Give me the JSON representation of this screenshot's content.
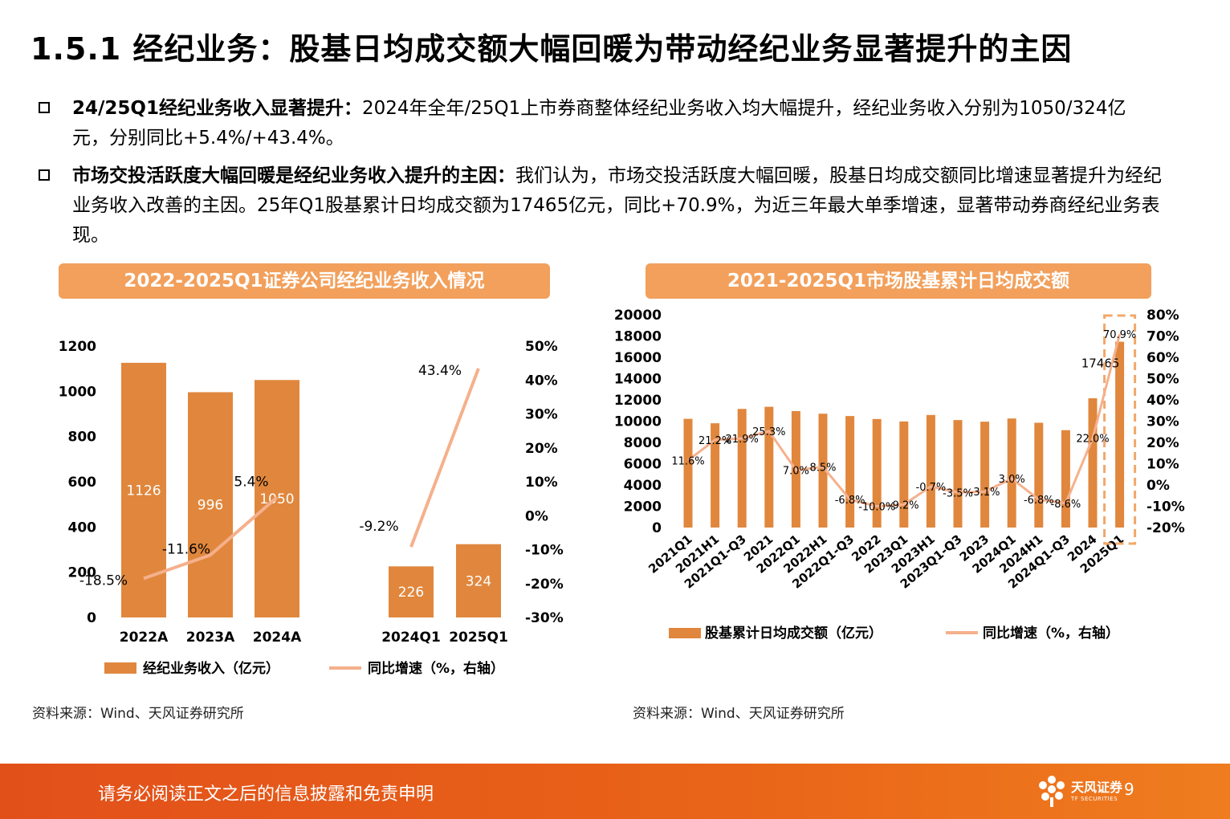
{
  "page": {
    "title": "1.5.1 经纪业务：股基日均成交额大幅回暖为带动经纪业务显著提升的主因",
    "bullets": [
      {
        "lead": "24/25Q1经纪业务收入显著提升：",
        "text": "2024年全年/25Q1上市券商整体经纪业务收入均大幅提升，经纪业务收入分别为1050/324亿元，分别同比+5.4%/+43.4%。"
      },
      {
        "lead": "市场交投活跃度大幅回暖是经纪业务收入提升的主因：",
        "text": "我们认为，市场交投活跃度大幅回暖，股基日均成交额同比增速显著提升为经纪业务收入改善的主因。25年Q1股基累计日均成交额为17465亿元，同比+70.9%，为近三年最大单季增速，显著带动券商经纪业务表现。"
      }
    ],
    "footer": "请务必阅读正文之后的信息披露和免责申明",
    "logo_name": "天风证券",
    "logo_sub": "TF SECURITIES",
    "page_number": "9",
    "colors": {
      "bar": "#e0873d",
      "line": "#f5b08c",
      "title_bg": "#f2a05c",
      "footer": "#e2501a",
      "highlight": "#f2a86a"
    }
  },
  "chart_data": [
    {
      "type": "bar",
      "title": "2022-2025Q1证券公司经纪业务收入情况",
      "source": "资料来源：Wind、天风证券研究所",
      "categories": [
        "2022A",
        "2023A",
        "2024A",
        "2024Q1",
        "2025Q1"
      ],
      "series": [
        {
          "name": "经纪业务收入（亿元）",
          "type": "bar",
          "axis": "left",
          "values": [
            1126,
            996,
            1050,
            226,
            324
          ],
          "labels": [
            "1126",
            "996",
            "1050",
            "226",
            "324"
          ]
        },
        {
          "name": "同比增速（%，右轴）",
          "type": "line",
          "axis": "right",
          "segments": [
            [
              0,
              1,
              2
            ],
            [
              3,
              4
            ]
          ],
          "values": [
            -18.5,
            -11.6,
            5.4,
            -9.2,
            43.4
          ],
          "labels": [
            "-18.5%",
            "-11.6%",
            "5.4%",
            "-9.2%",
            "43.4%"
          ]
        }
      ],
      "ylim": [
        0,
        1200
      ],
      "yticks": [
        "0",
        "200",
        "400",
        "600",
        "800",
        "1000",
        "1200"
      ],
      "y2lim": [
        -30,
        50
      ],
      "y2ticks": [
        "-30%",
        "-20%",
        "-10%",
        "0%",
        "10%",
        "20%",
        "30%",
        "40%",
        "50%"
      ]
    },
    {
      "type": "bar",
      "title": "2021-2025Q1市场股基累计日均成交额",
      "source": "资料来源：Wind、天风证券研究所",
      "categories": [
        "2021Q1",
        "2021H1",
        "2021Q1-Q3",
        "2021",
        "2022Q1",
        "2022H1",
        "2022Q1-Q3",
        "2022",
        "2023Q1",
        "2023H1",
        "2023Q1-Q3",
        "2023",
        "2024Q1",
        "2024H1",
        "2024Q1-Q3",
        "2024",
        "2025Q1"
      ],
      "series": [
        {
          "name": "股基累计日均成交额（亿元）",
          "type": "bar",
          "axis": "left",
          "values": [
            10220,
            9800,
            11150,
            11350,
            10950,
            10700,
            10480,
            10200,
            9970,
            10580,
            10100,
            9950,
            10250,
            9850,
            9150,
            12150,
            17465
          ],
          "labels": [
            "",
            "",
            "",
            "",
            "",
            "",
            "",
            "",
            "",
            "",
            "",
            "",
            "",
            "",
            "",
            "",
            "17465"
          ]
        },
        {
          "name": "同比增速（%，右轴）",
          "type": "line",
          "axis": "right",
          "values": [
            11.6,
            21.2,
            21.9,
            25.3,
            7.0,
            8.5,
            -6.8,
            -10.0,
            -9.2,
            -0.7,
            -3.5,
            -3.1,
            3.0,
            -6.8,
            -8.6,
            22.0,
            70.9
          ],
          "labels": [
            "11.6%",
            "21.2%",
            "21.9%",
            "25.3%",
            "7.0%",
            "8.5%",
            "-6.8%",
            "-10.0%",
            "-9.2%",
            "-0.7%",
            "-3.5%",
            "-3.1%",
            "3.0%",
            "-6.8%",
            "-8.6%",
            "22.0%",
            "70.9%"
          ]
        }
      ],
      "ylim": [
        0,
        20000
      ],
      "yticks": [
        "0",
        "2000",
        "4000",
        "6000",
        "8000",
        "10000",
        "12000",
        "14000",
        "16000",
        "18000",
        "20000"
      ],
      "y2lim": [
        -20,
        80
      ],
      "y2ticks": [
        "-20%",
        "-10%",
        "0%",
        "10%",
        "20%",
        "30%",
        "40%",
        "50%",
        "60%",
        "70%",
        "80%"
      ],
      "highlight_category": "2025Q1"
    }
  ]
}
